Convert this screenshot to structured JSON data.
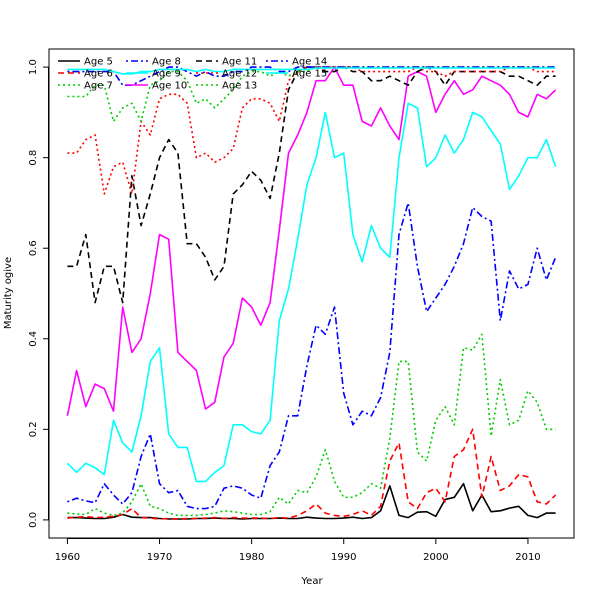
{
  "chart_data": {
    "type": "line",
    "title": "",
    "xlabel": "Year",
    "ylabel": "Maturity ogive",
    "xlim": [
      1958,
      2015
    ],
    "ylim": [
      -0.04,
      1.04
    ],
    "xticks": [
      1960,
      1970,
      1980,
      1990,
      2000,
      2010
    ],
    "yticks": [
      0.0,
      0.2,
      0.4,
      0.6,
      0.8,
      1.0
    ],
    "xtick_labels": [
      "1960",
      "1970",
      "1980",
      "1990",
      "2000",
      "2010"
    ],
    "ytick_labels": [
      "0.0",
      "0.2",
      "0.4",
      "0.6",
      "0.8",
      "1.0"
    ],
    "grid": false,
    "legend": "top-left",
    "x": [
      1960,
      1961,
      1962,
      1963,
      1964,
      1965,
      1966,
      1967,
      1968,
      1969,
      1970,
      1971,
      1972,
      1973,
      1974,
      1975,
      1976,
      1977,
      1978,
      1979,
      1980,
      1981,
      1982,
      1983,
      1984,
      1985,
      1986,
      1987,
      1988,
      1989,
      1990,
      1991,
      1992,
      1993,
      1994,
      1995,
      1996,
      1997,
      1998,
      1999,
      2000,
      2001,
      2002,
      2003,
      2004,
      2005,
      2006,
      2007,
      2008,
      2009,
      2010,
      2011,
      2012,
      2013
    ],
    "series": [
      {
        "name": "Age 5",
        "color": "#000000",
        "dash": "solid",
        "values": [
          0.005,
          0.005,
          0.004,
          0.003,
          0.003,
          0.006,
          0.012,
          0.006,
          0.005,
          0.005,
          0.003,
          0.002,
          0.002,
          0.002,
          0.003,
          0.003,
          0.004,
          0.003,
          0.003,
          0.002,
          0.003,
          0.003,
          0.003,
          0.004,
          0.003,
          0.003,
          0.006,
          0.004,
          0.003,
          0.003,
          0.004,
          0.006,
          0.003,
          0.005,
          0.02,
          0.075,
          0.01,
          0.005,
          0.017,
          0.018,
          0.008,
          0.045,
          0.05,
          0.08,
          0.02,
          0.055,
          0.018,
          0.02,
          0.026,
          0.03,
          0.01,
          0.005,
          0.015,
          0.015
        ]
      },
      {
        "name": "Age 6",
        "color": "#ff0000",
        "dash": "dashed",
        "values": [
          0.004,
          0.006,
          0.007,
          0.005,
          0.006,
          0.008,
          0.012,
          0.025,
          0.005,
          0.004,
          0.002,
          0.003,
          0.002,
          0.003,
          0.003,
          0.004,
          0.005,
          0.003,
          0.005,
          0.004,
          0.004,
          0.004,
          0.003,
          0.005,
          0.004,
          0.01,
          0.02,
          0.035,
          0.015,
          0.01,
          0.008,
          0.012,
          0.02,
          0.01,
          0.03,
          0.13,
          0.17,
          0.04,
          0.025,
          0.06,
          0.07,
          0.04,
          0.14,
          0.155,
          0.2,
          0.05,
          0.14,
          0.065,
          0.075,
          0.1,
          0.095,
          0.04,
          0.035,
          0.055
        ]
      },
      {
        "name": "Age 7",
        "color": "#00cc00",
        "dash": "dotted",
        "values": [
          0.015,
          0.013,
          0.012,
          0.025,
          0.015,
          0.01,
          0.015,
          0.04,
          0.08,
          0.03,
          0.025,
          0.015,
          0.01,
          0.01,
          0.01,
          0.012,
          0.015,
          0.02,
          0.018,
          0.015,
          0.012,
          0.012,
          0.018,
          0.05,
          0.035,
          0.065,
          0.06,
          0.095,
          0.155,
          0.085,
          0.05,
          0.05,
          0.06,
          0.08,
          0.07,
          0.18,
          0.35,
          0.35,
          0.15,
          0.13,
          0.22,
          0.25,
          0.21,
          0.38,
          0.375,
          0.41,
          0.185,
          0.31,
          0.21,
          0.22,
          0.285,
          0.26,
          0.2,
          0.2
        ]
      },
      {
        "name": "Age 8",
        "color": "#0000ff",
        "dash": "dashdot",
        "values": [
          0.04,
          0.048,
          0.042,
          0.038,
          0.08,
          0.055,
          0.035,
          0.06,
          0.14,
          0.19,
          0.08,
          0.06,
          0.065,
          0.03,
          0.025,
          0.025,
          0.03,
          0.07,
          0.075,
          0.07,
          0.055,
          0.048,
          0.12,
          0.15,
          0.23,
          0.23,
          0.34,
          0.43,
          0.41,
          0.47,
          0.28,
          0.21,
          0.24,
          0.23,
          0.27,
          0.37,
          0.63,
          0.7,
          0.56,
          0.46,
          0.49,
          0.52,
          0.56,
          0.61,
          0.69,
          0.67,
          0.66,
          0.44,
          0.55,
          0.51,
          0.52,
          0.6,
          0.53,
          0.58
        ]
      },
      {
        "name": "Age 9",
        "color": "#00ffff",
        "dash": "solid",
        "values": [
          0.125,
          0.105,
          0.125,
          0.115,
          0.1,
          0.22,
          0.17,
          0.15,
          0.23,
          0.35,
          0.38,
          0.19,
          0.16,
          0.16,
          0.085,
          0.085,
          0.105,
          0.12,
          0.21,
          0.21,
          0.195,
          0.19,
          0.22,
          0.44,
          0.51,
          0.62,
          0.74,
          0.8,
          0.9,
          0.8,
          0.81,
          0.63,
          0.57,
          0.65,
          0.6,
          0.58,
          0.8,
          0.92,
          0.91,
          0.78,
          0.8,
          0.85,
          0.81,
          0.84,
          0.9,
          0.89,
          0.86,
          0.83,
          0.73,
          0.76,
          0.8,
          0.8,
          0.84,
          0.78
        ]
      },
      {
        "name": "Age 10",
        "color": "#ff00ff",
        "dash": "solid",
        "values": [
          0.23,
          0.33,
          0.25,
          0.3,
          0.29,
          0.24,
          0.47,
          0.37,
          0.4,
          0.5,
          0.63,
          0.62,
          0.37,
          0.35,
          0.33,
          0.245,
          0.26,
          0.36,
          0.39,
          0.49,
          0.47,
          0.43,
          0.48,
          0.64,
          0.81,
          0.85,
          0.9,
          0.97,
          0.97,
          1.0,
          0.96,
          0.96,
          0.88,
          0.87,
          0.91,
          0.87,
          0.84,
          0.98,
          0.99,
          0.98,
          0.9,
          0.94,
          0.97,
          0.94,
          0.95,
          0.98,
          0.97,
          0.96,
          0.94,
          0.9,
          0.89,
          0.94,
          0.93,
          0.95
        ]
      },
      {
        "name": "Age 11",
        "color": "#000000",
        "dash": "dashed",
        "values": [
          0.56,
          0.56,
          0.63,
          0.48,
          0.56,
          0.56,
          0.48,
          0.76,
          0.65,
          0.72,
          0.8,
          0.84,
          0.81,
          0.61,
          0.61,
          0.58,
          0.53,
          0.56,
          0.72,
          0.74,
          0.77,
          0.75,
          0.71,
          0.81,
          0.95,
          0.99,
          1.0,
          1.0,
          0.99,
          0.99,
          1.0,
          0.99,
          0.99,
          0.97,
          0.97,
          0.98,
          0.97,
          0.96,
          0.99,
          1.0,
          0.99,
          0.96,
          0.99,
          0.99,
          0.99,
          0.99,
          0.99,
          0.99,
          0.98,
          0.98,
          0.97,
          0.96,
          0.98,
          0.98
        ]
      },
      {
        "name": "Age 12",
        "color": "#ff0000",
        "dash": "dotted",
        "values": [
          0.81,
          0.81,
          0.84,
          0.85,
          0.72,
          0.78,
          0.79,
          0.72,
          0.88,
          0.85,
          0.93,
          0.94,
          0.94,
          0.92,
          0.8,
          0.81,
          0.79,
          0.8,
          0.82,
          0.91,
          0.93,
          0.93,
          0.92,
          0.88,
          0.97,
          0.99,
          1.0,
          1.0,
          1.0,
          1.0,
          1.0,
          1.0,
          0.99,
          0.99,
          0.99,
          0.99,
          0.99,
          0.99,
          1.0,
          0.99,
          0.99,
          0.98,
          0.99,
          0.99,
          0.99,
          0.99,
          0.99,
          0.99,
          1.0,
          1.0,
          1.0,
          0.99,
          0.99,
          0.99
        ]
      },
      {
        "name": "Age 13",
        "color": "#00cc00",
        "dash": "dotted",
        "values": [
          0.935,
          0.935,
          0.935,
          0.96,
          0.96,
          0.88,
          0.91,
          0.92,
          0.88,
          0.96,
          0.97,
          0.99,
          0.99,
          0.97,
          0.92,
          0.93,
          0.91,
          0.93,
          0.95,
          0.98,
          0.99,
          0.99,
          0.98,
          0.99,
          0.98,
          0.99,
          0.99,
          1.0,
          1.0,
          1.0,
          1.0,
          1.0,
          1.0,
          1.0,
          1.0,
          1.0,
          1.0,
          1.0,
          1.0,
          1.0,
          1.0,
          1.0,
          1.0,
          1.0,
          1.0,
          1.0,
          1.0,
          1.0,
          1.0,
          1.0,
          1.0,
          1.0,
          1.0,
          1.0
        ]
      },
      {
        "name": "Age 14",
        "color": "#0000ff",
        "dash": "dashdot",
        "values": [
          0.99,
          0.99,
          0.99,
          0.99,
          0.99,
          0.99,
          0.96,
          0.96,
          0.97,
          0.98,
          0.99,
          1.0,
          1.0,
          0.99,
          0.98,
          0.99,
          0.98,
          0.98,
          0.99,
          0.99,
          1.0,
          1.0,
          1.0,
          0.99,
          0.99,
          1.0,
          1.0,
          1.0,
          1.0,
          1.0,
          1.0,
          1.0,
          1.0,
          1.0,
          1.0,
          1.0,
          1.0,
          1.0,
          1.0,
          1.0,
          1.0,
          1.0,
          1.0,
          1.0,
          1.0,
          1.0,
          1.0,
          1.0,
          1.0,
          1.0,
          1.0,
          1.0,
          1.0,
          1.0
        ]
      },
      {
        "name": "Age 15",
        "color": "#00ffff",
        "dash": "solid",
        "values": [
          0.995,
          0.995,
          0.995,
          0.995,
          0.995,
          0.99,
          0.985,
          0.985,
          0.99,
          0.99,
          0.995,
          0.995,
          0.995,
          0.995,
          0.99,
          0.995,
          0.99,
          0.99,
          0.995,
          0.995,
          0.995,
          0.995,
          0.995,
          0.995,
          0.995,
          0.995,
          0.995,
          0.998,
          0.998,
          0.998,
          0.998,
          0.998,
          0.998,
          0.998,
          0.998,
          0.998,
          0.998,
          0.998,
          0.998,
          0.998,
          0.998,
          0.998,
          0.998,
          0.998,
          0.998,
          0.998,
          0.998,
          0.998,
          0.998,
          0.998,
          0.998,
          0.998,
          0.998,
          0.998
        ]
      }
    ]
  }
}
